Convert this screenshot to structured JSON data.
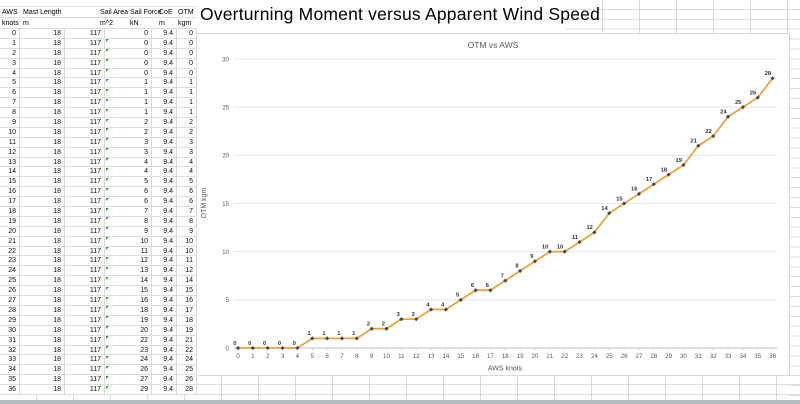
{
  "title": "Overturning Moment versus Apparent Wind Speed",
  "colors": {
    "line": "#E8A33C",
    "marker": "#4A4A4A",
    "error_indicator_green": "#2F9E3F",
    "axis_text": "#595959",
    "gridline": "#E4E4E4"
  },
  "table": {
    "headers": [
      "AWS",
      "Mast Length",
      "Sail Area",
      "Sail Force",
      "CoE",
      "OTM"
    ],
    "units": [
      "knots",
      "m",
      "m^2",
      "kN",
      "m",
      "kgm"
    ],
    "rows": [
      [
        0,
        18,
        117,
        0,
        "9.4",
        0
      ],
      [
        1,
        18,
        117,
        0,
        "9.4",
        0
      ],
      [
        2,
        18,
        117,
        0,
        "9.4",
        0
      ],
      [
        3,
        18,
        117,
        0,
        "9.4",
        0
      ],
      [
        4,
        18,
        117,
        0,
        "9.4",
        0
      ],
      [
        5,
        18,
        117,
        1,
        "9.4",
        1
      ],
      [
        6,
        18,
        117,
        1,
        "9.4",
        1
      ],
      [
        7,
        18,
        117,
        1,
        "9.4",
        1
      ],
      [
        8,
        18,
        117,
        1,
        "9.4",
        1
      ],
      [
        9,
        18,
        117,
        2,
        "9.4",
        2
      ],
      [
        10,
        18,
        117,
        2,
        "9.4",
        2
      ],
      [
        11,
        18,
        117,
        3,
        "9.4",
        3
      ],
      [
        12,
        18,
        117,
        3,
        "9.4",
        3
      ],
      [
        13,
        18,
        117,
        4,
        "9.4",
        4
      ],
      [
        14,
        18,
        117,
        4,
        "9.4",
        4
      ],
      [
        15,
        18,
        117,
        5,
        "9.4",
        5
      ],
      [
        16,
        18,
        117,
        6,
        "9.4",
        6
      ],
      [
        17,
        18,
        117,
        6,
        "9.4",
        6
      ],
      [
        18,
        18,
        117,
        7,
        "9.4",
        7
      ],
      [
        19,
        18,
        117,
        8,
        "9.4",
        8
      ],
      [
        20,
        18,
        117,
        9,
        "9.4",
        9
      ],
      [
        21,
        18,
        117,
        10,
        "9.4",
        10
      ],
      [
        22,
        18,
        117,
        11,
        "9.4",
        10
      ],
      [
        23,
        18,
        117,
        12,
        "9.4",
        11
      ],
      [
        24,
        18,
        117,
        13,
        "9.4",
        12
      ],
      [
        25,
        18,
        117,
        14,
        "9.4",
        14
      ],
      [
        26,
        18,
        117,
        15,
        "9.4",
        15
      ],
      [
        27,
        18,
        117,
        16,
        "9.4",
        16
      ],
      [
        28,
        18,
        117,
        18,
        "9.4",
        17
      ],
      [
        29,
        18,
        117,
        19,
        "9.4",
        18
      ],
      [
        30,
        18,
        117,
        20,
        "9.4",
        19
      ],
      [
        31,
        18,
        117,
        22,
        "9.4",
        21
      ],
      [
        32,
        18,
        117,
        23,
        "9.4",
        22
      ],
      [
        33,
        18,
        117,
        24,
        "9.4",
        24
      ],
      [
        34,
        18,
        117,
        26,
        "9.4",
        25
      ],
      [
        35,
        18,
        117,
        27,
        "9.4",
        26
      ],
      [
        36,
        18,
        117,
        29,
        "9.4",
        28
      ]
    ]
  },
  "chart_data": {
    "type": "line",
    "title": "OTM vs AWS",
    "xlabel": "AWS knots",
    "ylabel": "OTM kgm",
    "x": [
      0,
      1,
      2,
      3,
      4,
      5,
      6,
      7,
      8,
      9,
      10,
      11,
      12,
      13,
      14,
      15,
      16,
      17,
      18,
      19,
      20,
      21,
      22,
      23,
      24,
      25,
      26,
      27,
      28,
      29,
      30,
      31,
      32,
      33,
      34,
      35,
      36
    ],
    "series": [
      {
        "name": "OTM",
        "values": [
          0,
          0,
          0,
          0,
          0,
          1,
          1,
          1,
          1,
          2,
          2,
          3,
          3,
          4,
          4,
          5,
          6,
          6,
          7,
          8,
          9,
          10,
          10,
          11,
          12,
          14,
          15,
          16,
          17,
          18,
          19,
          21,
          22,
          24,
          25,
          26,
          28
        ]
      }
    ],
    "xlim": [
      0,
      36
    ],
    "ylim": [
      0,
      30
    ],
    "y_ticks": [
      0,
      5,
      10,
      15,
      20,
      25,
      30
    ],
    "grid": true,
    "legend": false,
    "data_labels": true
  }
}
